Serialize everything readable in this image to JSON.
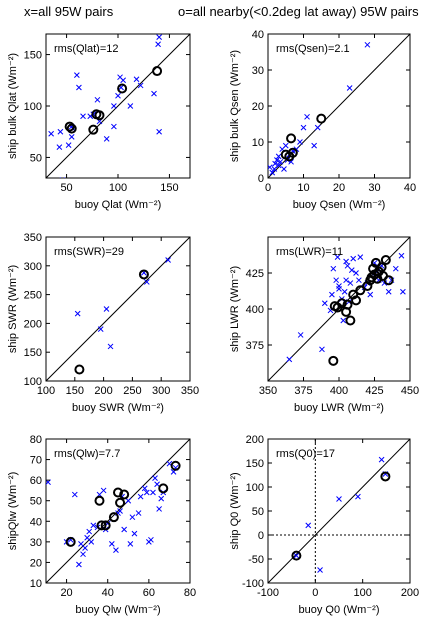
{
  "header": {
    "left_title": "x=all 95W pairs",
    "right_title": "o=all nearby(<0.2deg lat away) 95W pairs"
  },
  "chart_data": [
    {
      "type": "scatter",
      "id": "qlat",
      "xlabel": "buoy Qlat (Wm⁻²)",
      "ylabel": "ship bulk Qlat (Wm⁻²)",
      "annotation": "rms(Qlat)=12",
      "xlim": [
        30,
        170
      ],
      "ylim": [
        30,
        170
      ],
      "xticks": [
        50,
        100,
        150
      ],
      "yticks": [
        50,
        100,
        150
      ],
      "reference_line": "y=x",
      "all_pairs_x": [
        [
          35,
          73
        ],
        [
          43,
          60
        ],
        [
          44,
          75
        ],
        [
          46,
          28
        ],
        [
          52,
          62
        ],
        [
          55,
          80
        ],
        [
          55,
          70
        ],
        [
          56,
          78
        ],
        [
          60,
          130
        ],
        [
          62,
          118
        ],
        [
          66,
          90
        ],
        [
          73,
          90
        ],
        [
          76,
          92
        ],
        [
          80,
          106
        ],
        [
          82,
          85
        ],
        [
          89,
          68
        ],
        [
          96,
          80
        ],
        [
          96,
          100
        ],
        [
          100,
          110
        ],
        [
          102,
          128
        ],
        [
          103,
          118
        ],
        [
          105,
          125
        ],
        [
          112,
          100
        ],
        [
          118,
          126
        ],
        [
          122,
          120
        ],
        [
          135,
          112
        ],
        [
          139,
          160
        ],
        [
          140,
          167
        ],
        [
          140,
          75
        ]
      ],
      "nearby_pairs_o": [
        [
          53,
          80
        ],
        [
          55,
          78
        ],
        [
          76,
          77
        ],
        [
          79,
          92
        ],
        [
          82,
          91
        ],
        [
          104,
          117
        ],
        [
          138,
          134
        ]
      ]
    },
    {
      "type": "scatter",
      "id": "qsen",
      "xlabel": "buoy Qsen (Wm⁻²)",
      "ylabel": "ship bulk Qsen (Wm⁻²)",
      "annotation": "rms(Qsen)=2.1",
      "xlim": [
        0,
        40
      ],
      "ylim": [
        0,
        40
      ],
      "xticks": [
        0,
        10,
        20,
        30,
        40
      ],
      "yticks": [
        0,
        10,
        20,
        30,
        40
      ],
      "reference_line": "y=x",
      "all_pairs_x": [
        [
          0.5,
          3
        ],
        [
          1.2,
          1.5
        ],
        [
          1.8,
          2.5
        ],
        [
          2,
          4
        ],
        [
          2.5,
          5
        ],
        [
          3,
          6
        ],
        [
          3,
          3.5
        ],
        [
          3.5,
          4.5
        ],
        [
          4,
          8
        ],
        [
          4.5,
          2.5
        ],
        [
          5,
          9
        ],
        [
          5.5,
          5
        ],
        [
          6,
          6.5
        ],
        [
          6.5,
          4.5
        ],
        [
          7,
          7.5
        ],
        [
          8,
          8
        ],
        [
          9,
          10
        ],
        [
          10,
          14
        ],
        [
          11,
          17
        ],
        [
          13,
          9
        ],
        [
          14,
          14
        ],
        [
          23,
          25
        ],
        [
          28,
          37
        ]
      ],
      "nearby_pairs_o": [
        [
          5,
          6.5
        ],
        [
          6,
          6
        ],
        [
          6.5,
          11
        ],
        [
          7,
          7
        ],
        [
          15,
          16.5
        ]
      ]
    },
    {
      "type": "scatter",
      "id": "swr",
      "xlabel": "buoy SWR (Wm⁻²)",
      "ylabel": "ship SWR (Wm⁻²)",
      "annotation": "rms(SWR)=29",
      "xlim": [
        100,
        350
      ],
      "ylim": [
        100,
        350
      ],
      "xticks": [
        100,
        150,
        200,
        250,
        300,
        350
      ],
      "yticks": [
        100,
        150,
        200,
        250,
        300,
        350
      ],
      "reference_line": "y=x",
      "all_pairs_x": [
        [
          155,
          217
        ],
        [
          195,
          190
        ],
        [
          205,
          225
        ],
        [
          212,
          160
        ],
        [
          270,
          288
        ],
        [
          275,
          272
        ],
        [
          312,
          310
        ]
      ],
      "nearby_pairs_o": [
        [
          158,
          120
        ],
        [
          270,
          285
        ]
      ]
    },
    {
      "type": "scatter",
      "id": "lwr",
      "xlabel": "buoy LWR (Wm⁻²)",
      "ylabel": "ship LWR (Wm⁻²)",
      "annotation": "rms(LWR)=11",
      "xlim": [
        350,
        450
      ],
      "ylim": [
        350,
        450
      ],
      "xticks": [
        350,
        375,
        400,
        425,
        450
      ],
      "yticks": [
        375,
        400,
        425
      ],
      "reference_line": "y=x",
      "all_pairs_x": [
        [
          365,
          365
        ],
        [
          373,
          382
        ],
        [
          388,
          372
        ],
        [
          390,
          404
        ],
        [
          394,
          399
        ],
        [
          395,
          410
        ],
        [
          396,
          428
        ],
        [
          398,
          420
        ],
        [
          399,
          436
        ],
        [
          400,
          414
        ],
        [
          400,
          416
        ],
        [
          402,
          407
        ],
        [
          403,
          392
        ],
        [
          404,
          412
        ],
        [
          405,
          420
        ],
        [
          405,
          433
        ],
        [
          406,
          430
        ],
        [
          407,
          405
        ],
        [
          408,
          418
        ],
        [
          409,
          427
        ],
        [
          410,
          435
        ],
        [
          412,
          425
        ],
        [
          414,
          420
        ],
        [
          415,
          436
        ],
        [
          418,
          415
        ],
        [
          420,
          418
        ],
        [
          422,
          410
        ],
        [
          423,
          425
        ],
        [
          425,
          432
        ],
        [
          427,
          426
        ],
        [
          428,
          420
        ],
        [
          430,
          430
        ],
        [
          432,
          418
        ],
        [
          435,
          412
        ],
        [
          437,
          420
        ],
        [
          440,
          428
        ],
        [
          444,
          437
        ],
        [
          445,
          412
        ]
      ],
      "nearby_pairs_o": [
        [
          396,
          364
        ],
        [
          397,
          402
        ],
        [
          399,
          401
        ],
        [
          402,
          404
        ],
        [
          405,
          398
        ],
        [
          406,
          403
        ],
        [
          408,
          392
        ],
        [
          410,
          410
        ],
        [
          412,
          406
        ],
        [
          415,
          413
        ],
        [
          420,
          416
        ],
        [
          422,
          420
        ],
        [
          423,
          422
        ],
        [
          424,
          428
        ],
        [
          425,
          424
        ],
        [
          426,
          432
        ],
        [
          428,
          426
        ],
        [
          430,
          429
        ],
        [
          431,
          423
        ],
        [
          433,
          434
        ],
        [
          435,
          420
        ],
        [
          427,
          421
        ]
      ]
    },
    {
      "type": "scatter",
      "id": "qlw",
      "xlabel": "buoy Qlw (Wm⁻²)",
      "ylabel": "shipQlw (Wm⁻²)",
      "annotation": "rms(Qlw)=7.7",
      "xlim": [
        10,
        80
      ],
      "ylim": [
        10,
        80
      ],
      "xticks": [
        20,
        40,
        60,
        80
      ],
      "yticks": [
        10,
        20,
        30,
        40,
        50,
        60,
        70,
        80
      ],
      "reference_line": "y=x",
      "all_pairs_x": [
        [
          11,
          59
        ],
        [
          20,
          30
        ],
        [
          22,
          31
        ],
        [
          24,
          53
        ],
        [
          26,
          19
        ],
        [
          27,
          29
        ],
        [
          28,
          24
        ],
        [
          29,
          27
        ],
        [
          30,
          32
        ],
        [
          31,
          35
        ],
        [
          32,
          30
        ],
        [
          33,
          38
        ],
        [
          35,
          37
        ],
        [
          36,
          53
        ],
        [
          38,
          55
        ],
        [
          39,
          36
        ],
        [
          40,
          39
        ],
        [
          42,
          29
        ],
        [
          44,
          26
        ],
        [
          45,
          44
        ],
        [
          46,
          45
        ],
        [
          47,
          52
        ],
        [
          48,
          36
        ],
        [
          50,
          50
        ],
        [
          51,
          29
        ],
        [
          52,
          42
        ],
        [
          53,
          34
        ],
        [
          55,
          44
        ],
        [
          56,
          52
        ],
        [
          58,
          56
        ],
        [
          59,
          54
        ],
        [
          60,
          30
        ],
        [
          61,
          31
        ],
        [
          62,
          54
        ],
        [
          63,
          61
        ],
        [
          64,
          58
        ],
        [
          65,
          46
        ],
        [
          66,
          51
        ],
        [
          67,
          54
        ],
        [
          70,
          68
        ],
        [
          72,
          64
        ],
        [
          73,
          66
        ]
      ],
      "nearby_pairs_o": [
        [
          22,
          30
        ],
        [
          36,
          50
        ],
        [
          37,
          38
        ],
        [
          39,
          38
        ],
        [
          43,
          42
        ],
        [
          45,
          54
        ],
        [
          46,
          49
        ],
        [
          48,
          53
        ],
        [
          67,
          56
        ],
        [
          73,
          67
        ]
      ]
    },
    {
      "type": "scatter",
      "id": "q0",
      "xlabel": "buoy Q0 (Wm⁻²)",
      "ylabel": "ship Q0 (Wm⁻²)",
      "annotation": "rms(Q0)=17",
      "xlim": [
        -100,
        200
      ],
      "ylim": [
        -100,
        200
      ],
      "xticks": [
        -100,
        0,
        100,
        200
      ],
      "yticks": [
        -100,
        -50,
        0,
        50,
        100,
        150,
        200
      ],
      "reference_line": "y=x",
      "zero_lines": true,
      "all_pairs_x": [
        [
          -40,
          -43
        ],
        [
          -15,
          20
        ],
        [
          10,
          -73
        ],
        [
          50,
          75
        ],
        [
          90,
          80
        ],
        [
          140,
          157
        ],
        [
          148,
          127
        ]
      ],
      "nearby_pairs_o": [
        [
          -40,
          -43
        ],
        [
          148,
          122
        ]
      ]
    }
  ]
}
